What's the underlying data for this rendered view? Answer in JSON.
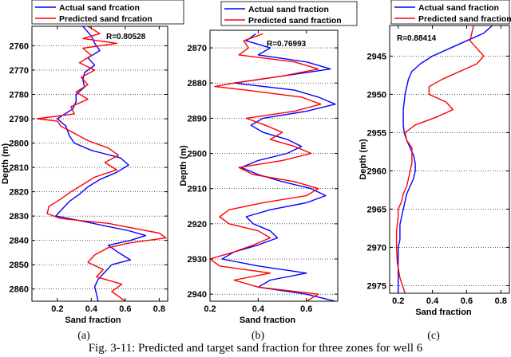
{
  "caption": "Fig. 3-11: Predicted and target sand fraction for three zones for well 6",
  "colors": {
    "actual": "#0000ff",
    "predicted": "#ff0000"
  },
  "chart_data": [
    {
      "type": "line",
      "panel_label": "(a)",
      "xlabel": "Sand fraction",
      "ylabel": "Depth (m)",
      "r_text": "R=0.80528",
      "legend": [
        "Actual sand frcation",
        "Predicted sand frcation"
      ],
      "legend_position": "top-left",
      "xlim": [
        0.05,
        0.85
      ],
      "ylim": [
        2752,
        2865
      ],
      "xticks": [
        0.2,
        0.4,
        0.6,
        0.8
      ],
      "yticks": [
        2760,
        2770,
        2780,
        2790,
        2800,
        2810,
        2820,
        2830,
        2840,
        2850,
        2860
      ],
      "grid": "dotted-horizontal",
      "series": [
        {
          "name": "Actual sand frcation",
          "depth": [
            2752,
            2756,
            2759,
            2762,
            2765,
            2768,
            2771,
            2774,
            2777,
            2780,
            2783,
            2786,
            2790,
            2793,
            2797,
            2800,
            2803,
            2806,
            2809,
            2812,
            2815,
            2818,
            2821,
            2824,
            2827,
            2830,
            2832,
            2834,
            2836,
            2838,
            2840,
            2842,
            2845,
            2848,
            2850,
            2853,
            2856,
            2859,
            2862,
            2865
          ],
          "values": [
            0.35,
            0.4,
            0.42,
            0.45,
            0.38,
            0.42,
            0.36,
            0.35,
            0.36,
            0.31,
            0.31,
            0.29,
            0.2,
            0.25,
            0.27,
            0.3,
            0.4,
            0.57,
            0.62,
            0.55,
            0.45,
            0.38,
            0.33,
            0.27,
            0.23,
            0.19,
            0.34,
            0.48,
            0.62,
            0.72,
            0.63,
            0.5,
            0.56,
            0.63,
            0.52,
            0.48,
            0.44,
            0.42,
            0.43,
            0.44
          ]
        },
        {
          "name": "Predicted sand frcation",
          "depth": [
            2752,
            2755,
            2757,
            2759,
            2761,
            2764,
            2767,
            2770,
            2773,
            2776,
            2779,
            2782,
            2785,
            2788,
            2790,
            2791,
            2793,
            2796,
            2799,
            2802,
            2805,
            2808,
            2811,
            2814,
            2817,
            2820,
            2823,
            2826,
            2829,
            2831,
            2833,
            2835,
            2837,
            2839,
            2841,
            2843,
            2846,
            2849,
            2852,
            2855,
            2858,
            2861,
            2865
          ],
          "values": [
            0.38,
            0.45,
            0.35,
            0.55,
            0.35,
            0.4,
            0.33,
            0.42,
            0.34,
            0.38,
            0.31,
            0.38,
            0.28,
            0.3,
            0.08,
            0.2,
            0.22,
            0.3,
            0.38,
            0.5,
            0.56,
            0.48,
            0.55,
            0.42,
            0.35,
            0.28,
            0.22,
            0.15,
            0.14,
            0.22,
            0.5,
            0.65,
            0.8,
            0.84,
            0.63,
            0.5,
            0.42,
            0.38,
            0.47,
            0.43,
            0.58,
            0.52,
            0.6
          ]
        }
      ]
    },
    {
      "type": "line",
      "panel_label": "(b)",
      "xlabel": "Sand fraction",
      "ylabel": "Depth (m)",
      "r_text": "R=0.76993",
      "legend": [
        "Actual sand fraction",
        "Predicted sand fraction"
      ],
      "legend_position": "top",
      "xlim": [
        0.2,
        0.73
      ],
      "ylim": [
        2865,
        2942
      ],
      "xticks": [
        0.2,
        0.4,
        0.6
      ],
      "yticks": [
        2870,
        2880,
        2890,
        2900,
        2910,
        2920,
        2930,
        2940
      ],
      "grid": "dotted-horizontal",
      "series": [
        {
          "name": "Actual sand fraction",
          "depth": [
            2866,
            2868,
            2870,
            2872,
            2874,
            2876,
            2878,
            2880,
            2882,
            2884,
            2886,
            2888,
            2890,
            2892,
            2894,
            2896,
            2898,
            2900,
            2902,
            2904,
            2906,
            2908,
            2910,
            2912,
            2914,
            2916,
            2918,
            2920,
            2922,
            2924,
            2926,
            2928,
            2930,
            2932,
            2934,
            2936,
            2938,
            2940,
            2942
          ],
          "values": [
            0.39,
            0.35,
            0.45,
            0.4,
            0.6,
            0.7,
            0.5,
            0.3,
            0.55,
            0.65,
            0.72,
            0.6,
            0.42,
            0.37,
            0.42,
            0.52,
            0.58,
            0.52,
            0.4,
            0.33,
            0.4,
            0.5,
            0.62,
            0.68,
            0.6,
            0.45,
            0.35,
            0.38,
            0.45,
            0.48,
            0.4,
            0.3,
            0.25,
            0.4,
            0.6,
            0.45,
            0.4,
            0.6,
            0.72
          ]
        },
        {
          "name": "Predicted sand fraction",
          "depth": [
            2866,
            2868,
            2870,
            2872,
            2874,
            2876,
            2878,
            2880,
            2881,
            2882,
            2884,
            2886,
            2888,
            2890,
            2892,
            2894,
            2896,
            2898,
            2900,
            2902,
            2904,
            2906,
            2908,
            2910,
            2912,
            2914,
            2916,
            2918,
            2920,
            2922,
            2924,
            2926,
            2928,
            2930,
            2932,
            2934,
            2936,
            2938,
            2940,
            2942
          ],
          "values": [
            0.42,
            0.34,
            0.36,
            0.32,
            0.55,
            0.65,
            0.5,
            0.3,
            0.22,
            0.35,
            0.58,
            0.66,
            0.55,
            0.35,
            0.43,
            0.5,
            0.45,
            0.55,
            0.62,
            0.5,
            0.32,
            0.38,
            0.55,
            0.65,
            0.6,
            0.42,
            0.28,
            0.24,
            0.28,
            0.4,
            0.45,
            0.38,
            0.3,
            0.2,
            0.24,
            0.45,
            0.3,
            0.4,
            0.65,
            0.6
          ]
        }
      ]
    },
    {
      "type": "line",
      "panel_label": "(c)",
      "xlabel": "Sand fraction",
      "ylabel": "Depth (m)",
      "r_text": "R=0.88414",
      "legend": [
        "Actual sand fraction",
        "Predicted sand fraction"
      ],
      "legend_position": "top",
      "xlim": [
        0.15,
        0.85
      ],
      "ylim": [
        2941,
        2976
      ],
      "xticks": [
        0.2,
        0.4,
        0.6,
        0.8
      ],
      "yticks": [
        2945,
        2950,
        2955,
        2960,
        2965,
        2970,
        2975
      ],
      "grid": "dotted-horizontal",
      "series": [
        {
          "name": "Actual sand fraction",
          "depth": [
            2941,
            2942,
            2943,
            2944,
            2945,
            2946,
            2947,
            2948,
            2949,
            2950,
            2951,
            2952,
            2953,
            2954,
            2955,
            2956,
            2957,
            2958,
            2959,
            2960,
            2961,
            2962,
            2963,
            2964,
            2965,
            2966,
            2967,
            2968,
            2969,
            2970,
            2972,
            2974,
            2976
          ],
          "values": [
            0.75,
            0.7,
            0.6,
            0.5,
            0.4,
            0.33,
            0.28,
            0.26,
            0.25,
            0.24,
            0.235,
            0.23,
            0.23,
            0.23,
            0.235,
            0.25,
            0.27,
            0.29,
            0.3,
            0.3,
            0.29,
            0.27,
            0.25,
            0.24,
            0.23,
            0.22,
            0.21,
            0.21,
            0.21,
            0.2,
            0.2,
            0.2,
            0.2
          ]
        },
        {
          "name": "Predicted sand fraction",
          "depth": [
            2941,
            2942,
            2943,
            2944,
            2945,
            2946,
            2947,
            2948,
            2949,
            2950,
            2951,
            2952,
            2953,
            2954,
            2955,
            2956,
            2957,
            2958,
            2959,
            2960,
            2961,
            2962,
            2963,
            2964,
            2965,
            2966,
            2967,
            2968,
            2969,
            2970,
            2972,
            2974,
            2976
          ],
          "values": [
            0.64,
            0.63,
            0.62,
            0.66,
            0.7,
            0.66,
            0.56,
            0.46,
            0.38,
            0.38,
            0.48,
            0.52,
            0.42,
            0.3,
            0.24,
            0.25,
            0.28,
            0.28,
            0.28,
            0.27,
            0.26,
            0.25,
            0.23,
            0.22,
            0.2,
            0.2,
            0.195,
            0.19,
            0.19,
            0.19,
            0.195,
            0.21,
            0.24
          ]
        }
      ]
    }
  ]
}
